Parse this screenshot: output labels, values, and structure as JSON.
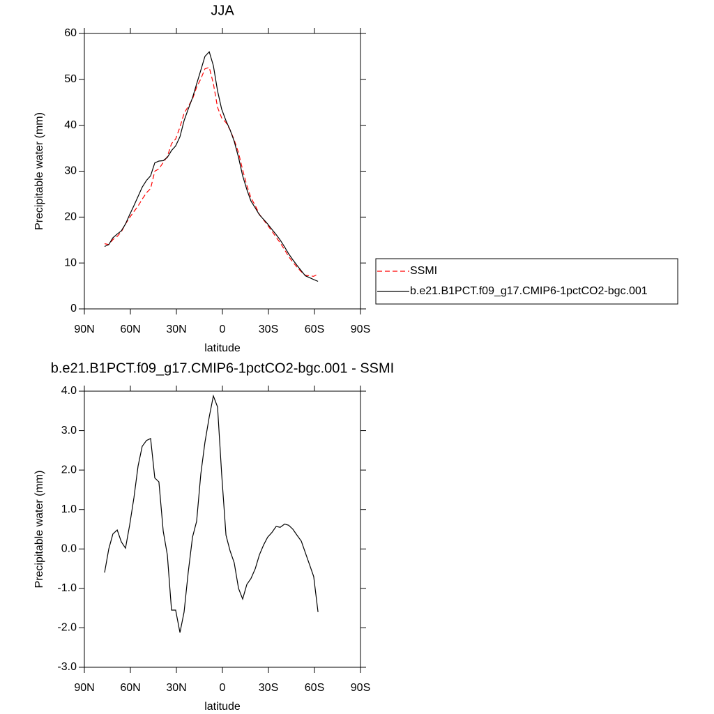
{
  "chart_data": [
    {
      "type": "line",
      "title": "JJA",
      "x_label": "latitude",
      "y_label": "Precipitable water (mm)",
      "x": [
        76.8,
        74.1,
        71.4,
        68.6,
        65.9,
        63.2,
        60.5,
        57.7,
        55.0,
        52.3,
        49.5,
        46.8,
        44.1,
        41.4,
        38.6,
        35.9,
        33.2,
        30.5,
        27.7,
        25.0,
        22.3,
        19.5,
        16.8,
        14.1,
        11.4,
        8.6,
        5.9,
        3.2,
        0.5,
        -2.3,
        -5.0,
        -7.7,
        -10.5,
        -13.2,
        -15.9,
        -18.6,
        -21.4,
        -24.1,
        -26.8,
        -29.5,
        -32.3,
        -35.0,
        -37.7,
        -40.5,
        -43.2,
        -45.9,
        -48.6,
        -51.4,
        -54.1,
        -56.8,
        -59.5,
        -62.3
      ],
      "series": [
        {
          "name": "SSMI",
          "color": "#ff0000",
          "dashed": true,
          "values": [
            14.2,
            14,
            15.1,
            15.8,
            16.8,
            18.5,
            19.9,
            21.2,
            22.4,
            23.9,
            25.3,
            26.2,
            30,
            30.5,
            31.9,
            33.2,
            36,
            37,
            39.6,
            42.6,
            44.1,
            45.7,
            48.3,
            50.1,
            52.3,
            52.6,
            49.1,
            43.9,
            41.6,
            40.6,
            39,
            36.8,
            34,
            30.3,
            26.9,
            24.2,
            22.5,
            20.6,
            19.4,
            18.2,
            16.9,
            15.6,
            14.4,
            12.9,
            11.4,
            10.2,
            9.1,
            8.1,
            7.3,
            7.2,
            7.1,
            7.6
          ]
        },
        {
          "name": "b.e21.B1PCT.f09_g17.CMIP6-1pctCO2-bgc.001",
          "color": "#000000",
          "dashed": false,
          "values": [
            13.6,
            14,
            15.5,
            16.3,
            17,
            18.5,
            20.5,
            22.5,
            24.5,
            26.5,
            28,
            29,
            31.8,
            32.2,
            32.3,
            33,
            34.5,
            35.5,
            37.5,
            41,
            43.5,
            46,
            49,
            52,
            55,
            56,
            53,
            47.5,
            43.5,
            41,
            39,
            36.5,
            33,
            29,
            26,
            23.5,
            22,
            20.5,
            19.5,
            18.5,
            17.3,
            16.2,
            15,
            13.5,
            12,
            10.7,
            9.5,
            8.3,
            7.2,
            6.8,
            6.4,
            6.0
          ]
        }
      ],
      "xlim": [
        90,
        -90
      ],
      "xticks": [
        {
          "value": 90,
          "label": "90N"
        },
        {
          "value": 60,
          "label": "60N"
        },
        {
          "value": 30,
          "label": "30N"
        },
        0,
        {
          "value": -30,
          "label": "30S"
        },
        {
          "value": -60,
          "label": "60S"
        },
        {
          "value": -90,
          "label": "90S"
        }
      ],
      "ylim": [
        0,
        60
      ],
      "yticks": [
        0,
        10,
        20,
        30,
        40,
        50,
        60
      ],
      "legend": "outside-right"
    },
    {
      "type": "line",
      "title": "b.e21.B1PCT.f09_g17.CMIP6-1pctCO2-bgc.001 - SSMI",
      "x_label": "latitude",
      "y_label": "Precipitable water (mm)",
      "x": [
        76.8,
        74.1,
        71.4,
        68.6,
        65.9,
        63.2,
        60.5,
        57.7,
        55.0,
        52.3,
        49.5,
        46.8,
        44.1,
        41.4,
        38.6,
        35.9,
        33.2,
        30.5,
        27.7,
        25.0,
        22.3,
        19.5,
        16.8,
        14.1,
        11.4,
        8.6,
        5.9,
        3.2,
        0.5,
        -2.3,
        -5.0,
        -7.7,
        -10.5,
        -13.2,
        -15.9,
        -18.6,
        -21.4,
        -24.1,
        -26.8,
        -29.5,
        -32.3,
        -35.0,
        -37.7,
        -40.5,
        -43.2,
        -45.9,
        -48.6,
        -51.4,
        -54.1,
        -56.8,
        -59.5,
        -62.3
      ],
      "color": "#000000",
      "values": [
        -0.6,
        0.0,
        0.38,
        0.48,
        0.18,
        0.02,
        0.6,
        1.3,
        2.1,
        2.6,
        2.75,
        2.8,
        1.8,
        1.7,
        0.45,
        -0.15,
        -1.55,
        -1.55,
        -2.12,
        -1.6,
        -0.6,
        0.3,
        0.7,
        1.9,
        2.7,
        3.35,
        3.88,
        3.6,
        1.9,
        0.35,
        -0.05,
        -0.35,
        -1.0,
        -1.27,
        -0.9,
        -0.75,
        -0.5,
        -0.15,
        0.1,
        0.3,
        0.42,
        0.57,
        0.55,
        0.63,
        0.6,
        0.5,
        0.35,
        0.2,
        -0.1,
        -0.4,
        -0.7,
        -1.6
      ],
      "xlim": [
        90,
        -90
      ],
      "xticks": [
        {
          "value": 90,
          "label": "90N"
        },
        {
          "value": 60,
          "label": "60N"
        },
        {
          "value": 30,
          "label": "30N"
        },
        0,
        {
          "value": -30,
          "label": "30S"
        },
        {
          "value": -60,
          "label": "60S"
        },
        {
          "value": -90,
          "label": "90S"
        }
      ],
      "ylim": [
        -3,
        4
      ],
      "yticks": [
        {
          "value": -3,
          "label": "-3.0"
        },
        {
          "value": -2,
          "label": "-2.0"
        },
        {
          "value": -1,
          "label": "-1.0"
        },
        {
          "value": 0,
          "label": "0.0"
        },
        {
          "value": 1,
          "label": "1.0"
        },
        {
          "value": 2,
          "label": "2.0"
        },
        {
          "value": 3,
          "label": "3.0"
        },
        {
          "value": 4,
          "label": "4.0"
        }
      ]
    }
  ]
}
